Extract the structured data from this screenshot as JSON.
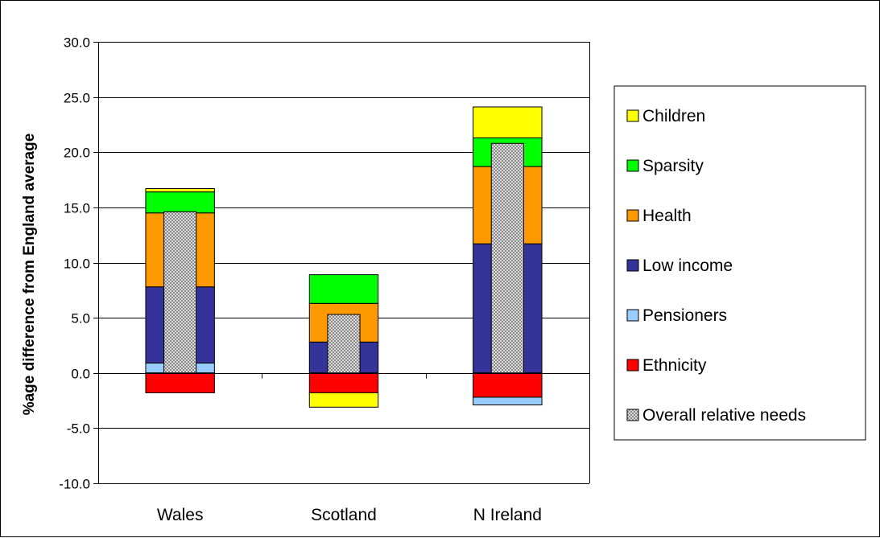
{
  "chart_data": {
    "type": "bar",
    "stacked": true,
    "title": "",
    "xlabel": "",
    "ylabel": "%age difference from England average",
    "ylim": [
      -10,
      30
    ],
    "yticks": [
      -10,
      -5,
      0,
      5,
      10,
      15,
      20,
      25,
      30
    ],
    "ytick_labels": [
      "-10.0",
      "-5.0",
      "0.0",
      "5.0",
      "10.0",
      "15.0",
      "20.0",
      "25.0",
      "30.0"
    ],
    "grid": "horizontal",
    "legend_position": "right",
    "categories": [
      "Wales",
      "Scotland",
      "N Ireland"
    ],
    "series": [
      {
        "name": "Children",
        "color": "#ffff00",
        "values": [
          0.3,
          -1.3,
          2.8
        ]
      },
      {
        "name": "Sparsity",
        "color": "#00ff00",
        "values": [
          1.9,
          2.6,
          2.6
        ]
      },
      {
        "name": "Health",
        "color": "#ff9900",
        "values": [
          6.7,
          3.5,
          7.0
        ]
      },
      {
        "name": "Low income",
        "color": "#333399",
        "values": [
          6.9,
          2.8,
          11.7
        ]
      },
      {
        "name": "Pensioners",
        "color": "#99ccff",
        "values": [
          0.9,
          0.0,
          -0.7
        ]
      },
      {
        "name": "Ethnicity",
        "color": "#ff0000",
        "values": [
          -1.8,
          -1.8,
          -2.2
        ]
      }
    ],
    "stack_order": [
      "Pensioners",
      "Low income",
      "Health",
      "Sparsity",
      "Children"
    ],
    "negative_stack_order": [
      "Ethnicity",
      "Pensioners",
      "Children"
    ],
    "overall": {
      "name": "Overall relative needs",
      "pattern": "checkered",
      "values": [
        14.6,
        5.3,
        20.8
      ]
    }
  }
}
